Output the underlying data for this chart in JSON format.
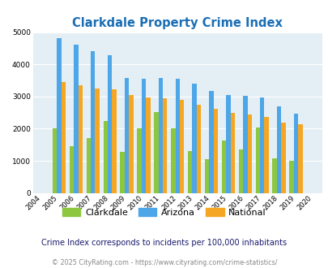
{
  "title": "Clarkdale Property Crime Index",
  "years": [
    "2004",
    "2005",
    "2006",
    "2007",
    "2008",
    "2009",
    "2010",
    "2011",
    "2012",
    "2013",
    "2014",
    "2015",
    "2016",
    "2017",
    "2018",
    "2019",
    "2020"
  ],
  "clarkdale": [
    0,
    2000,
    1450,
    1700,
    2250,
    1280,
    2020,
    2520,
    2020,
    1300,
    1050,
    1620,
    1360,
    2030,
    1080,
    1010,
    0
  ],
  "arizona": [
    0,
    4820,
    4620,
    4400,
    4280,
    3570,
    3550,
    3570,
    3540,
    3400,
    3180,
    3040,
    3010,
    2960,
    2680,
    2460,
    0
  ],
  "national": [
    0,
    3440,
    3340,
    3250,
    3220,
    3050,
    2960,
    2950,
    2890,
    2750,
    2610,
    2490,
    2450,
    2360,
    2190,
    2140,
    0
  ],
  "clarkdale_color": "#8dc63f",
  "arizona_color": "#4da6e8",
  "national_color": "#f5a623",
  "bg_color": "#e4eff5",
  "grid_color": "#ffffff",
  "ylim": [
    0,
    5000
  ],
  "yticks": [
    0,
    1000,
    2000,
    3000,
    4000,
    5000
  ],
  "subtitle": "Crime Index corresponds to incidents per 100,000 inhabitants",
  "footer": "© 2025 CityRating.com - https://www.cityrating.com/crime-statistics/",
  "title_color": "#1a6eb5",
  "subtitle_color": "#1a1a6e",
  "footer_color": "#888888",
  "legend_labels": [
    "Clarkdale",
    "Arizona",
    "National"
  ]
}
